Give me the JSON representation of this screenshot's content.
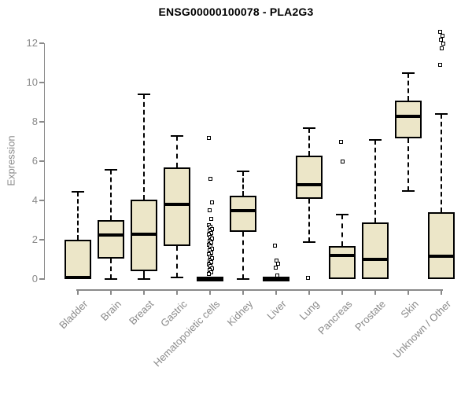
{
  "chart_data": {
    "type": "boxplot",
    "title": "ENSG00000100078 - PLA2G3",
    "ylabel": "Expression",
    "ylim": [
      0,
      12.75
    ],
    "yticks": [
      0,
      2,
      4,
      6,
      8,
      10,
      12
    ],
    "grid": false,
    "legend": "none",
    "categories": [
      "Bladder",
      "Brain",
      "Breast",
      "Gastric",
      "Hematopoietic cells",
      "Kidney",
      "Liver",
      "Lung",
      "Pancreas",
      "Prostate",
      "Skin",
      "Unknown / Other"
    ],
    "series": [
      {
        "category": "Bladder",
        "whisker_low": 0,
        "q1": 0,
        "median": 0.08,
        "q3": 2.0,
        "whisker_high": 4.45,
        "outliers": []
      },
      {
        "category": "Brain",
        "whisker_low": 0,
        "q1": 1.05,
        "median": 2.25,
        "q3": 3.0,
        "whisker_high": 5.55,
        "outliers": []
      },
      {
        "category": "Breast",
        "whisker_low": 0,
        "q1": 0.4,
        "median": 2.3,
        "q3": 4.05,
        "whisker_high": 9.4,
        "outliers": []
      },
      {
        "category": "Gastric",
        "whisker_low": 0.1,
        "q1": 1.7,
        "median": 3.8,
        "q3": 5.7,
        "whisker_high": 7.3,
        "outliers": []
      },
      {
        "category": "Hematopoietic cells",
        "whisker_low": 0,
        "q1": 0,
        "median": 0.05,
        "q3": 0.1,
        "whisker_high": 0.1,
        "outliers": [
          7.2,
          5.1,
          3.9,
          3.5,
          3.05,
          2.75,
          2.65,
          2.55,
          2.45,
          2.35,
          2.25,
          2.15,
          2.05,
          1.95,
          1.85,
          1.75,
          1.65,
          1.55,
          1.45,
          1.35,
          1.25,
          1.15,
          1.05,
          0.95,
          0.85,
          0.75,
          0.65,
          0.55,
          0.45,
          0.35,
          0.25
        ]
      },
      {
        "category": "Kidney",
        "whisker_low": 0,
        "q1": 2.4,
        "median": 3.5,
        "q3": 4.25,
        "whisker_high": 5.5,
        "outliers": []
      },
      {
        "category": "Liver",
        "whisker_low": 0,
        "q1": 0,
        "median": 0.05,
        "q3": 0.1,
        "whisker_high": 0.1,
        "outliers": [
          1.7,
          0.95,
          0.8,
          0.6,
          0.2
        ]
      },
      {
        "category": "Lung",
        "whisker_low": 1.9,
        "q1": 4.1,
        "median": 4.8,
        "q3": 6.3,
        "whisker_high": 7.7,
        "outliers": [
          0.05
        ]
      },
      {
        "category": "Pancreas",
        "whisker_low": 0,
        "q1": 0,
        "median": 1.2,
        "q3": 1.7,
        "whisker_high": 3.3,
        "outliers": [
          7.0,
          6.0
        ]
      },
      {
        "category": "Prostate",
        "whisker_low": 0,
        "q1": 0,
        "median": 1.0,
        "q3": 2.9,
        "whisker_high": 7.1,
        "outliers": []
      },
      {
        "category": "Skin",
        "whisker_low": 4.5,
        "q1": 7.15,
        "median": 8.3,
        "q3": 9.1,
        "whisker_high": 10.5,
        "outliers": []
      },
      {
        "category": "Unknown / Other",
        "whisker_low": 0,
        "q1": 0,
        "median": 1.15,
        "q3": 3.4,
        "whisker_high": 8.4,
        "outliers": [
          10.9,
          11.75,
          12.0,
          12.2,
          12.4,
          12.6
        ]
      }
    ],
    "colors": {
      "box_fill": "#ece6c8",
      "box_border": "#000000",
      "median": "#000000",
      "whisker": "#000000",
      "outlier_border": "#000000",
      "axis": "#8a8a8a",
      "tick_text": "#8a8a8a",
      "title_text": "#000000",
      "background": "#ffffff"
    }
  }
}
